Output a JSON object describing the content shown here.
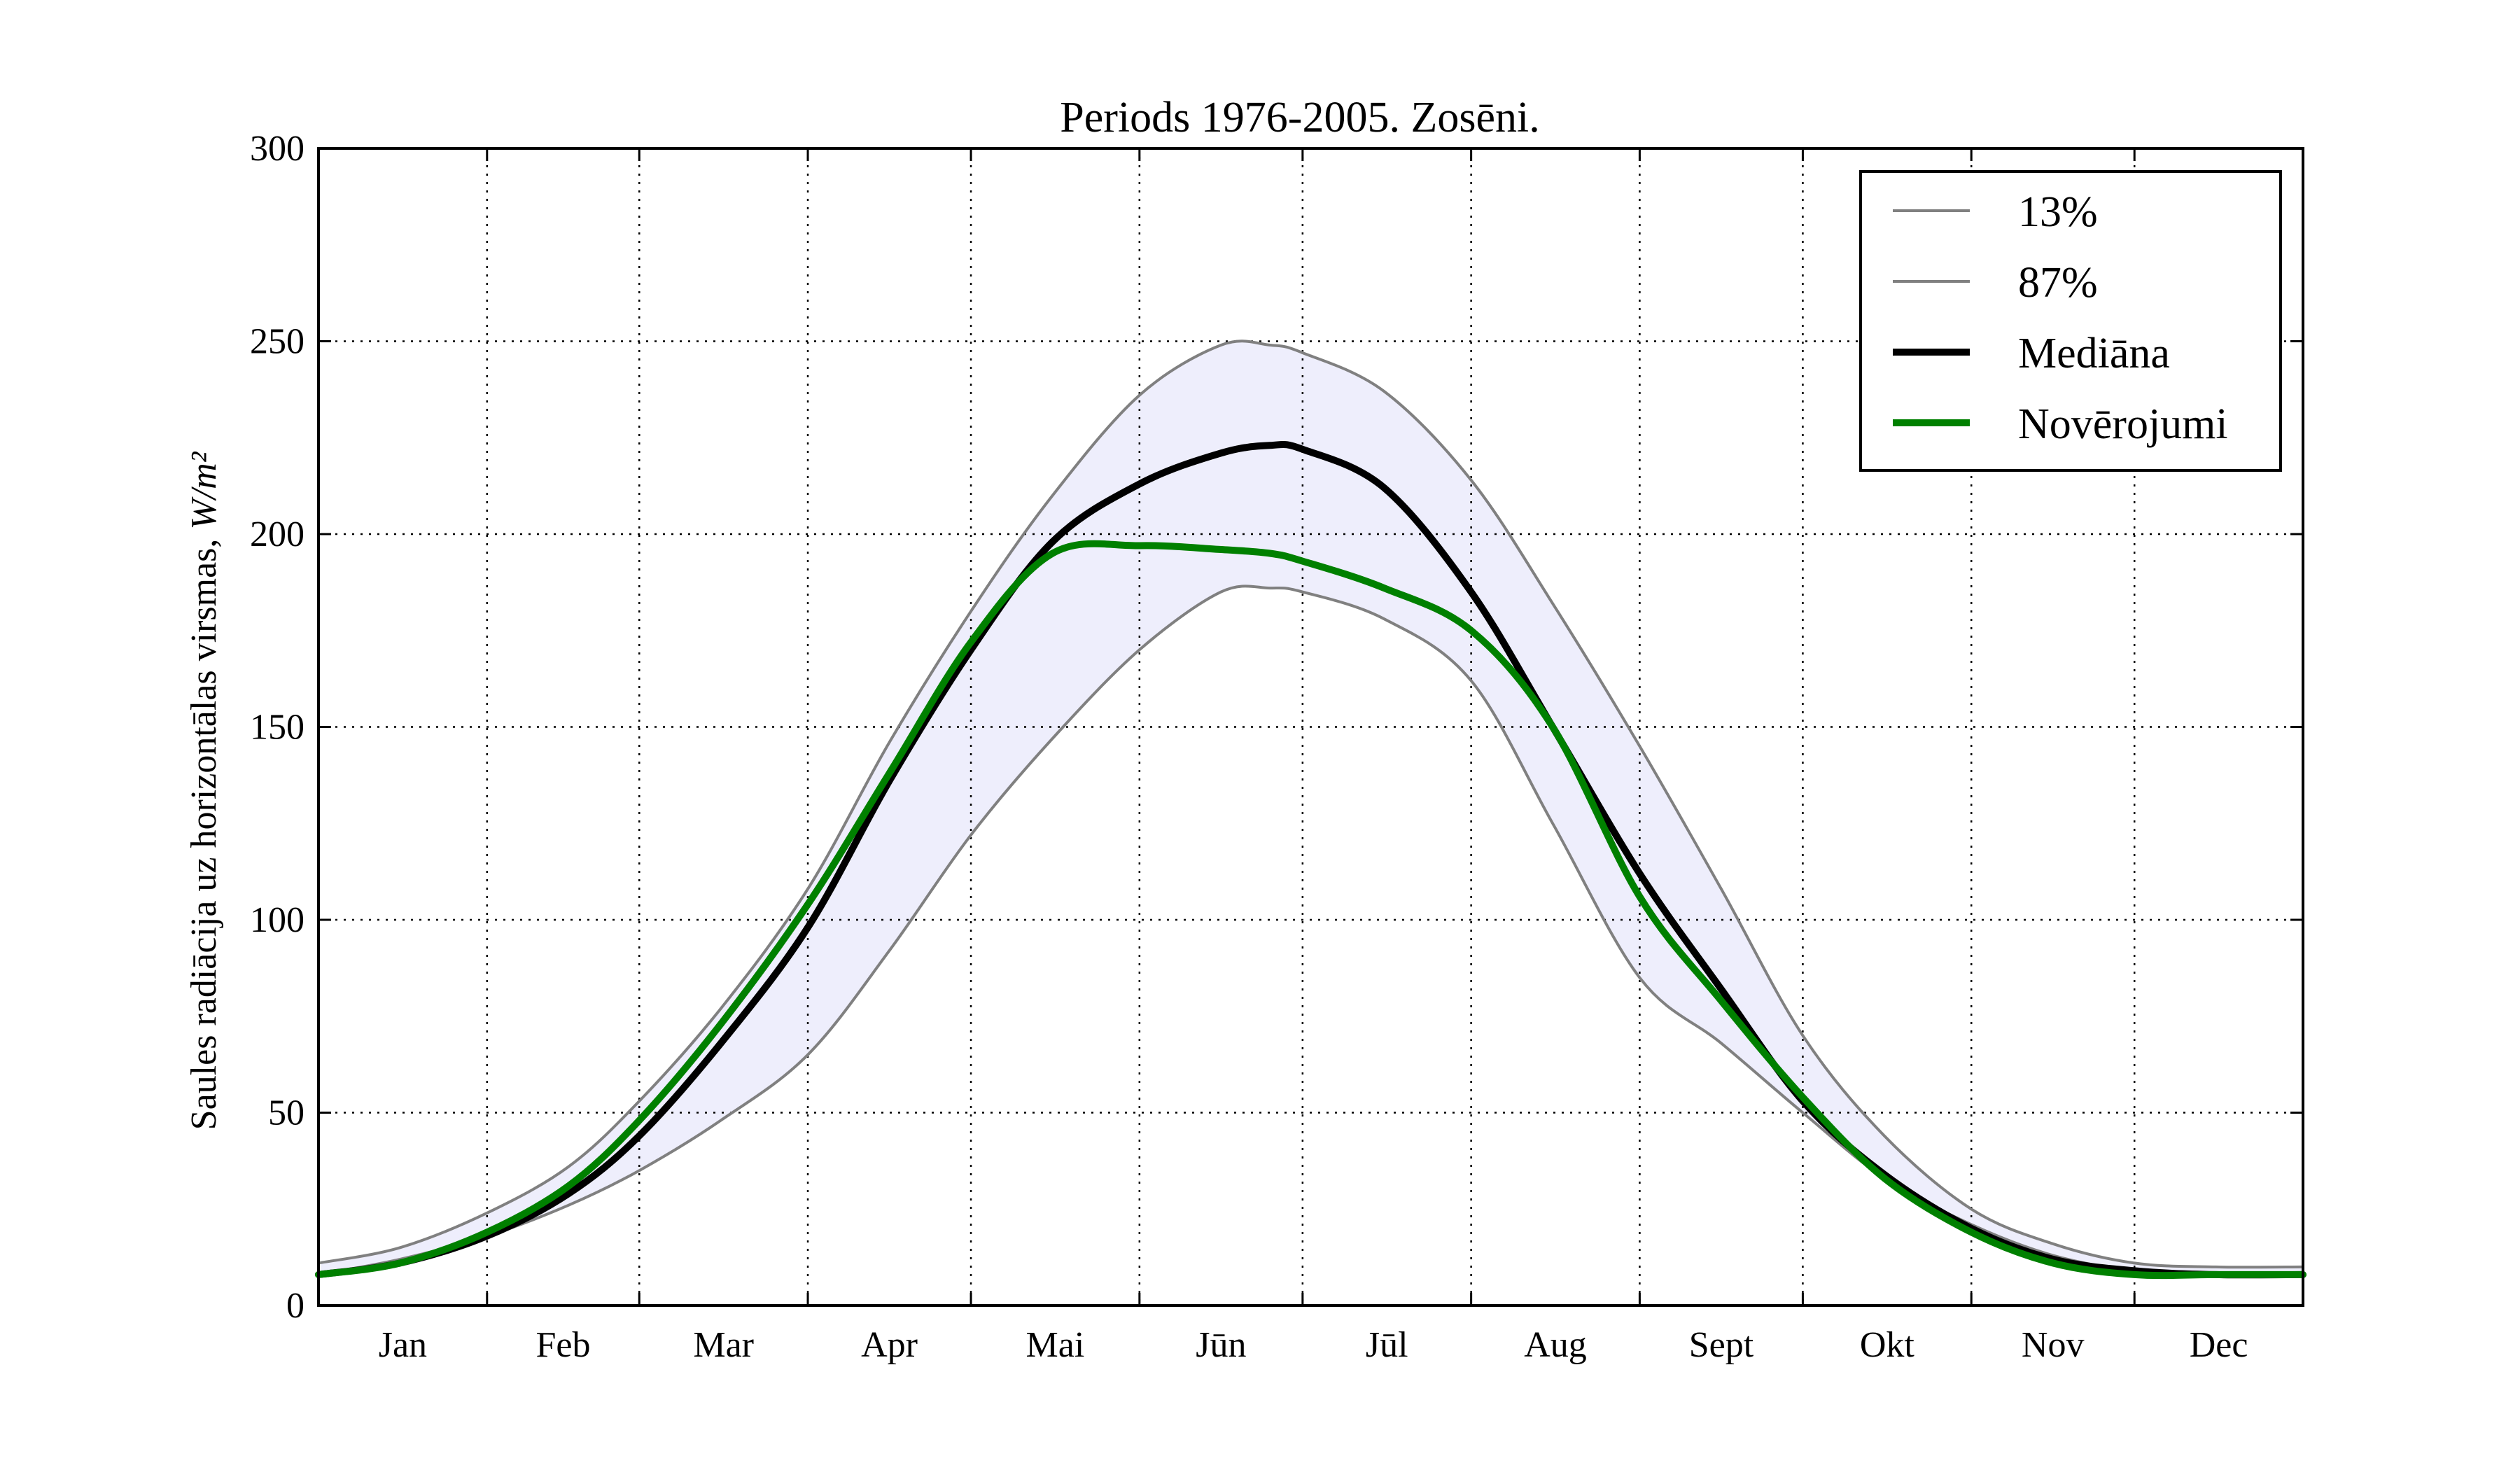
{
  "chart_data": {
    "type": "line",
    "title": "Periods 1976-2005. Zosēni.",
    "ylabel_text": "Saules radiācija uz horizontālas virsmas, ",
    "ylabel_units": "W/m²",
    "ylim": [
      0,
      300
    ],
    "yticks": [
      0,
      50,
      100,
      150,
      200,
      250,
      300
    ],
    "xlim": [
      0,
      365
    ],
    "month_boundaries": [
      31,
      59,
      90,
      120,
      151,
      181,
      212,
      243,
      273,
      304,
      334
    ],
    "categories": [
      "Jan",
      "Feb",
      "Mar",
      "Apr",
      "Mai",
      "Jūn",
      "Jūl",
      "Aug",
      "Sept",
      "Okt",
      "Nov",
      "Dec"
    ],
    "grid": true,
    "legend_position": "top-right",
    "band": {
      "between": [
        "13%",
        "87%"
      ],
      "color": "#eeeefc"
    },
    "x": [
      0,
      15,
      31,
      46,
      59,
      74,
      90,
      105,
      120,
      135,
      151,
      166,
      175,
      181,
      196,
      212,
      227,
      243,
      258,
      273,
      288,
      304,
      319,
      334,
      349,
      365
    ],
    "series": [
      {
        "name": "13%",
        "color": "#808080",
        "width": 4,
        "values": [
          8,
          12,
          18,
          26,
          35,
          48,
          65,
          92,
          122,
          147,
          170,
          185,
          186,
          185,
          178,
          162,
          125,
          85,
          68,
          50,
          33,
          21,
          13,
          9,
          8,
          8
        ]
      },
      {
        "name": "87%",
        "color": "#808080",
        "width": 4,
        "values": [
          11,
          15,
          24,
          36,
          53,
          77,
          108,
          146,
          180,
          210,
          236,
          249,
          249,
          247,
          237,
          214,
          182,
          145,
          108,
          70,
          44,
          25,
          16,
          11,
          10,
          10
        ]
      },
      {
        "name": "Mediāna",
        "color": "#000000",
        "width": 10,
        "values": [
          8,
          11,
          18,
          29,
          44,
          68,
          98,
          136,
          170,
          198,
          213,
          221,
          223,
          222,
          212,
          185,
          150,
          112,
          82,
          53,
          34,
          20,
          12,
          9,
          8,
          8
        ]
      },
      {
        "name": "Novērojumi",
        "color": "#008000",
        "width": 10,
        "values": [
          8,
          11,
          19,
          31,
          48,
          73,
          104,
          138,
          172,
          195,
          197,
          196,
          195,
          193,
          186,
          175,
          150,
          106,
          79,
          54,
          33,
          19,
          11,
          8,
          8,
          8
        ]
      }
    ]
  }
}
